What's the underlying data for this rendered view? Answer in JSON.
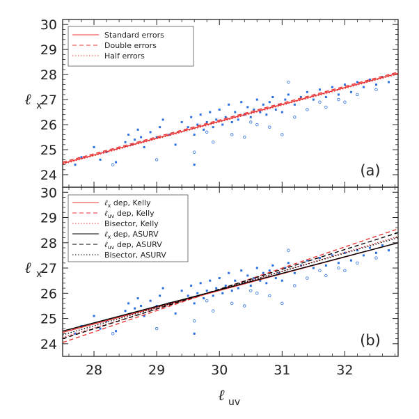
{
  "chart_data": [
    {
      "id": "panel-a",
      "type": "scatter",
      "panel_label": "(a)",
      "ylabel": "ℓ",
      "ylabel_sub": "x",
      "xlim": [
        27.5,
        32.85
      ],
      "ylim": [
        23.5,
        30.2
      ],
      "yticks": [
        "24",
        "25",
        "26",
        "27",
        "28",
        "29",
        "30"
      ],
      "legend": {
        "position": "top-left",
        "entries": [
          {
            "text": "Standard errors",
            "color": "#e83030",
            "dash": "solid"
          },
          {
            "text": "Double errors",
            "color": "#e83030",
            "dash": "dashed"
          },
          {
            "text": "Half errors",
            "color": "#e83030",
            "dash": "dotted"
          }
        ]
      },
      "lines": [
        {
          "name": "Standard errors",
          "color": "#e83030",
          "dash": "solid",
          "x": [
            27.5,
            32.85
          ],
          "y": [
            24.45,
            28.05
          ]
        },
        {
          "name": "Double errors",
          "color": "#e83030",
          "dash": "dashed",
          "x": [
            27.5,
            32.85
          ],
          "y": [
            24.5,
            28.1
          ]
        },
        {
          "name": "Half errors",
          "color": "#e83030",
          "dash": "dotted",
          "x": [
            27.5,
            32.85
          ],
          "y": [
            24.42,
            28.02
          ]
        }
      ],
      "points_detected": [
        [
          27.7,
          24.4
        ],
        [
          27.8,
          24.7
        ],
        [
          28.0,
          25.1
        ],
        [
          28.1,
          24.6
        ],
        [
          28.2,
          24.9
        ],
        [
          28.35,
          24.5
        ],
        [
          28.5,
          25.3
        ],
        [
          28.55,
          25.6
        ],
        [
          28.6,
          25.2
        ],
        [
          28.65,
          25.4
        ],
        [
          28.7,
          25.8
        ],
        [
          28.75,
          25.5
        ],
        [
          28.8,
          25.1
        ],
        [
          28.9,
          25.7
        ],
        [
          29.0,
          25.5
        ],
        [
          29.05,
          25.9
        ],
        [
          29.1,
          26.2
        ],
        [
          29.2,
          25.6
        ],
        [
          29.3,
          25.2
        ],
        [
          29.4,
          26.1
        ],
        [
          29.5,
          25.9
        ],
        [
          29.55,
          26.3
        ],
        [
          29.6,
          24.4
        ],
        [
          29.6,
          25.6
        ],
        [
          29.65,
          26.0
        ],
        [
          29.7,
          26.4
        ],
        [
          29.75,
          25.8
        ],
        [
          29.8,
          26.1
        ],
        [
          29.85,
          26.5
        ],
        [
          29.9,
          25.9
        ],
        [
          29.95,
          26.2
        ],
        [
          30.0,
          26.6
        ],
        [
          30.05,
          26.0
        ],
        [
          30.1,
          26.3
        ],
        [
          30.15,
          26.8
        ],
        [
          30.2,
          26.1
        ],
        [
          30.25,
          26.5
        ],
        [
          30.3,
          26.2
        ],
        [
          30.35,
          26.9
        ],
        [
          30.4,
          26.4
        ],
        [
          30.45,
          26.7
        ],
        [
          30.5,
          26.3
        ],
        [
          30.55,
          26.6
        ],
        [
          30.6,
          27.0
        ],
        [
          30.65,
          26.5
        ],
        [
          30.7,
          26.8
        ],
        [
          30.75,
          26.4
        ],
        [
          30.8,
          26.9
        ],
        [
          30.85,
          27.1
        ],
        [
          30.9,
          26.6
        ],
        [
          30.95,
          26.8
        ],
        [
          31.0,
          26.5
        ],
        [
          31.05,
          27.0
        ],
        [
          31.1,
          27.2
        ],
        [
          31.2,
          26.8
        ],
        [
          31.3,
          27.1
        ],
        [
          31.4,
          27.3
        ],
        [
          31.5,
          27.0
        ],
        [
          31.6,
          27.4
        ],
        [
          31.7,
          27.1
        ],
        [
          31.8,
          27.5
        ],
        [
          31.9,
          27.2
        ],
        [
          32.0,
          27.6
        ],
        [
          32.1,
          27.3
        ],
        [
          32.2,
          27.7
        ],
        [
          32.3,
          27.5
        ],
        [
          32.4,
          27.8
        ],
        [
          32.5,
          27.6
        ],
        [
          32.6,
          27.9
        ],
        [
          32.7,
          27.7
        ]
      ],
      "points_censored": [
        [
          28.3,
          24.4
        ],
        [
          29.0,
          24.6
        ],
        [
          29.6,
          24.9
        ],
        [
          29.9,
          25.3
        ],
        [
          30.2,
          25.6
        ],
        [
          30.4,
          25.5
        ],
        [
          30.6,
          26.0
        ],
        [
          30.8,
          25.9
        ],
        [
          31.0,
          25.6
        ],
        [
          31.2,
          26.3
        ],
        [
          31.4,
          26.6
        ],
        [
          31.6,
          26.9
        ],
        [
          31.9,
          27.0
        ],
        [
          32.2,
          27.2
        ],
        [
          32.5,
          27.4
        ],
        [
          31.1,
          27.7
        ],
        [
          30.5,
          26.1
        ],
        [
          29.8,
          25.7
        ],
        [
          31.7,
          26.7
        ],
        [
          32.0,
          26.9
        ]
      ]
    },
    {
      "id": "panel-b",
      "type": "scatter",
      "panel_label": "(b)",
      "xlabel": "ℓ",
      "xlabel_sub": "uv",
      "ylabel": "ℓ",
      "ylabel_sub": "x",
      "xlim": [
        27.5,
        32.85
      ],
      "ylim": [
        23.5,
        30.2
      ],
      "xticks": [
        "28",
        "29",
        "30",
        "31",
        "32"
      ],
      "yticks": [
        "24",
        "25",
        "26",
        "27",
        "28",
        "29",
        "30"
      ],
      "legend": {
        "position": "top-left",
        "entries": [
          {
            "sym": "ℓ",
            "sub": "x",
            "text": " dep, Kelly",
            "color": "#e83030",
            "dash": "solid"
          },
          {
            "sym": "ℓ",
            "sub": "uv",
            "text": " dep, Kelly",
            "color": "#e83030",
            "dash": "dashed"
          },
          {
            "sym": "",
            "sub": "",
            "text": "Bisector, Kelly",
            "color": "#e83030",
            "dash": "dotted"
          },
          {
            "sym": "ℓ",
            "sub": "x",
            "text": " dep, ASURV",
            "color": "#000000",
            "dash": "solid"
          },
          {
            "sym": "ℓ",
            "sub": "uv",
            "text": " dep, ASURV",
            "color": "#000000",
            "dash": "dashed"
          },
          {
            "sym": "",
            "sub": "",
            "text": "Bisector, ASURV",
            "color": "#000000",
            "dash": "dotted"
          }
        ]
      },
      "lines": [
        {
          "name": "lx dep, Kelly",
          "color": "#e83030",
          "dash": "solid",
          "x": [
            27.5,
            32.85
          ],
          "y": [
            24.45,
            28.0
          ]
        },
        {
          "name": "luv dep, Kelly",
          "color": "#e83030",
          "dash": "dashed",
          "x": [
            27.5,
            32.85
          ],
          "y": [
            24.05,
            28.55
          ]
        },
        {
          "name": "Bisector, Kelly",
          "color": "#e83030",
          "dash": "dotted",
          "x": [
            27.5,
            32.85
          ],
          "y": [
            24.25,
            28.25
          ]
        },
        {
          "name": "lx dep, ASURV",
          "color": "#000000",
          "dash": "solid",
          "x": [
            27.5,
            32.85
          ],
          "y": [
            24.5,
            28.0
          ]
        },
        {
          "name": "luv dep, ASURV",
          "color": "#000000",
          "dash": "dashed",
          "x": [
            27.5,
            32.85
          ],
          "y": [
            24.2,
            28.4
          ]
        },
        {
          "name": "Bisector, ASURV",
          "color": "#000000",
          "dash": "dotted",
          "x": [
            27.5,
            32.85
          ],
          "y": [
            24.35,
            28.2
          ]
        }
      ],
      "points_detected": [
        [
          27.7,
          24.4
        ],
        [
          27.8,
          24.7
        ],
        [
          28.0,
          25.1
        ],
        [
          28.1,
          24.6
        ],
        [
          28.2,
          24.9
        ],
        [
          28.35,
          24.5
        ],
        [
          28.5,
          25.3
        ],
        [
          28.55,
          25.6
        ],
        [
          28.6,
          25.2
        ],
        [
          28.65,
          25.4
        ],
        [
          28.7,
          25.8
        ],
        [
          28.75,
          25.5
        ],
        [
          28.8,
          25.1
        ],
        [
          28.9,
          25.7
        ],
        [
          29.0,
          25.5
        ],
        [
          29.05,
          25.9
        ],
        [
          29.1,
          26.2
        ],
        [
          29.2,
          25.6
        ],
        [
          29.3,
          25.2
        ],
        [
          29.4,
          26.1
        ],
        [
          29.5,
          25.9
        ],
        [
          29.55,
          26.3
        ],
        [
          29.6,
          24.4
        ],
        [
          29.6,
          25.6
        ],
        [
          29.65,
          26.0
        ],
        [
          29.7,
          26.4
        ],
        [
          29.75,
          25.8
        ],
        [
          29.8,
          26.1
        ],
        [
          29.85,
          26.5
        ],
        [
          29.9,
          25.9
        ],
        [
          29.95,
          26.2
        ],
        [
          30.0,
          26.6
        ],
        [
          30.05,
          26.0
        ],
        [
          30.1,
          26.3
        ],
        [
          30.15,
          26.8
        ],
        [
          30.2,
          26.1
        ],
        [
          30.25,
          26.5
        ],
        [
          30.3,
          26.2
        ],
        [
          30.35,
          26.9
        ],
        [
          30.4,
          26.4
        ],
        [
          30.45,
          26.7
        ],
        [
          30.5,
          26.3
        ],
        [
          30.55,
          26.6
        ],
        [
          30.6,
          27.0
        ],
        [
          30.65,
          26.5
        ],
        [
          30.7,
          26.8
        ],
        [
          30.75,
          26.4
        ],
        [
          30.8,
          26.9
        ],
        [
          30.85,
          27.1
        ],
        [
          30.9,
          26.6
        ],
        [
          30.95,
          26.8
        ],
        [
          31.0,
          26.5
        ],
        [
          31.05,
          27.0
        ],
        [
          31.1,
          27.2
        ],
        [
          31.2,
          26.8
        ],
        [
          31.3,
          27.1
        ],
        [
          31.4,
          27.3
        ],
        [
          31.5,
          27.0
        ],
        [
          31.6,
          27.4
        ],
        [
          31.7,
          27.1
        ],
        [
          31.8,
          27.5
        ],
        [
          31.9,
          27.2
        ],
        [
          32.0,
          27.6
        ],
        [
          32.1,
          27.3
        ],
        [
          32.2,
          27.7
        ],
        [
          32.3,
          27.5
        ],
        [
          32.4,
          27.8
        ],
        [
          32.5,
          27.6
        ],
        [
          32.6,
          27.9
        ],
        [
          32.7,
          27.7
        ]
      ],
      "points_censored": [
        [
          28.3,
          24.4
        ],
        [
          29.0,
          24.6
        ],
        [
          29.6,
          24.9
        ],
        [
          29.9,
          25.3
        ],
        [
          30.2,
          25.6
        ],
        [
          30.4,
          25.5
        ],
        [
          30.6,
          26.0
        ],
        [
          30.8,
          25.9
        ],
        [
          31.0,
          25.6
        ],
        [
          31.2,
          26.3
        ],
        [
          31.4,
          26.6
        ],
        [
          31.6,
          26.9
        ],
        [
          31.9,
          27.0
        ],
        [
          32.2,
          27.2
        ],
        [
          32.5,
          27.4
        ],
        [
          31.1,
          27.7
        ],
        [
          30.5,
          26.1
        ],
        [
          29.8,
          25.7
        ],
        [
          31.7,
          26.7
        ],
        [
          32.0,
          26.9
        ]
      ]
    }
  ],
  "colors": {
    "points": "#2b6fe0",
    "axis": "#222222"
  }
}
